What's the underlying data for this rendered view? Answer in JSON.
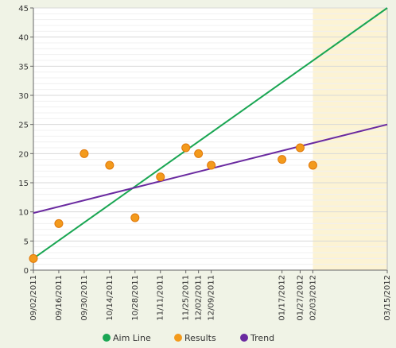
{
  "chart_data": {
    "type": "scatter",
    "title": "",
    "xlabel": "",
    "ylabel": "",
    "ylim": [
      0,
      45
    ],
    "yticks": [
      0,
      5,
      10,
      15,
      20,
      25,
      30,
      35,
      40,
      45
    ],
    "grid": true,
    "legend_position": "bottom",
    "x_dates": [
      "09/02/2011",
      "09/16/2011",
      "09/30/2011",
      "10/14/2011",
      "10/28/2011",
      "11/11/2011",
      "11/25/2011",
      "12/02/2011",
      "12/09/2011",
      "01/17/2012",
      "01/27/2012",
      "02/03/2012",
      "03/15/2012"
    ],
    "projection_region": {
      "from": "02/03/2012",
      "to": "03/15/2012",
      "color": "#fcf3d4"
    },
    "series": [
      {
        "name": "Aim Line",
        "type": "line",
        "color": "#1aa653",
        "points": [
          {
            "x": "09/02/2011",
            "y": 2
          },
          {
            "x": "03/15/2012",
            "y": 45
          }
        ]
      },
      {
        "name": "Results",
        "type": "scatter",
        "color": "#f39a1c",
        "points": [
          {
            "x": "09/02/2011",
            "y": 2
          },
          {
            "x": "09/16/2011",
            "y": 8
          },
          {
            "x": "09/30/2011",
            "y": 20
          },
          {
            "x": "10/14/2011",
            "y": 18
          },
          {
            "x": "10/28/2011",
            "y": 9
          },
          {
            "x": "11/11/2011",
            "y": 16
          },
          {
            "x": "11/25/2011",
            "y": 21
          },
          {
            "x": "12/02/2011",
            "y": 20
          },
          {
            "x": "12/09/2011",
            "y": 18
          },
          {
            "x": "01/17/2012",
            "y": 19
          },
          {
            "x": "01/27/2012",
            "y": 21
          },
          {
            "x": "02/03/2012",
            "y": 18
          }
        ]
      },
      {
        "name": "Trend",
        "type": "line",
        "color": "#6a2aa0",
        "points": [
          {
            "x": "09/02/2011",
            "y": 9.8
          },
          {
            "x": "03/15/2012",
            "y": 25
          }
        ]
      }
    ]
  }
}
